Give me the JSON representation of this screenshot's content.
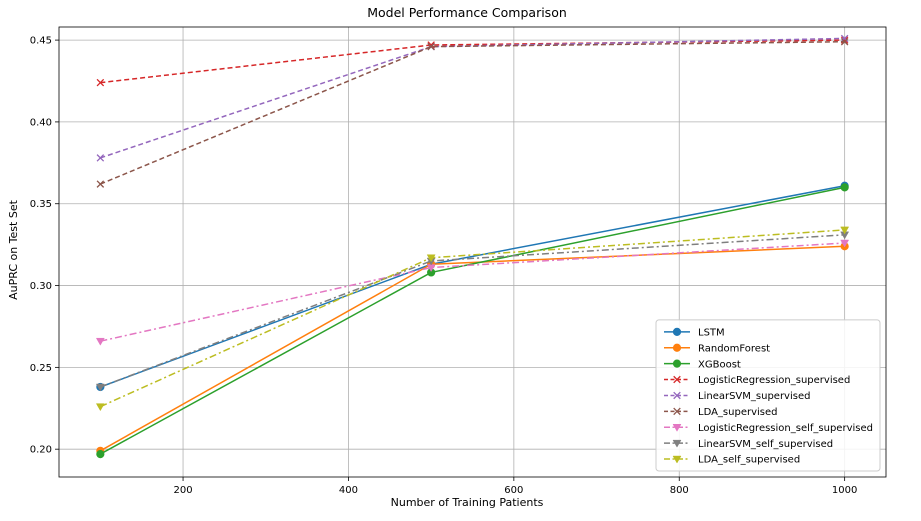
{
  "chart_data": {
    "type": "line",
    "title": "Model Performance Comparison",
    "xlabel": "Number of Training Patients",
    "ylabel": "AuPRC on Test Set",
    "xlim": [
      50,
      1050
    ],
    "ylim": [
      0.183,
      0.458
    ],
    "xticks": [
      200,
      400,
      600,
      800,
      1000
    ],
    "yticks": [
      0.2,
      0.25,
      0.3,
      0.35,
      0.4,
      0.45
    ],
    "grid": true,
    "legend_position": "lower-right",
    "x": [
      100,
      500,
      1000
    ],
    "series": [
      {
        "name": "LSTM",
        "values": [
          0.238,
          0.313,
          0.361
        ],
        "color": "#1f77b4",
        "linestyle": "solid",
        "marker": "circle"
      },
      {
        "name": "RandomForest",
        "values": [
          0.199,
          0.313,
          0.324
        ],
        "color": "#ff7f0e",
        "linestyle": "solid",
        "marker": "circle"
      },
      {
        "name": "XGBoost",
        "values": [
          0.197,
          0.308,
          0.36
        ],
        "color": "#2ca02c",
        "linestyle": "solid",
        "marker": "circle"
      },
      {
        "name": "LogisticRegression_supervised",
        "values": [
          0.424,
          0.447,
          0.45
        ],
        "color": "#d62728",
        "linestyle": "dashed",
        "marker": "x"
      },
      {
        "name": "LinearSVM_supervised",
        "values": [
          0.378,
          0.446,
          0.451
        ],
        "color": "#9467bd",
        "linestyle": "dashed",
        "marker": "x"
      },
      {
        "name": "LDA_supervised",
        "values": [
          0.362,
          0.446,
          0.449
        ],
        "color": "#8c564b",
        "linestyle": "dashed",
        "marker": "x"
      },
      {
        "name": "LogisticRegression_self_supervised",
        "values": [
          0.266,
          0.311,
          0.326
        ],
        "color": "#e377c2",
        "linestyle": "dashdot",
        "marker": "triangle-down"
      },
      {
        "name": "LinearSVM_self_supervised",
        "values": [
          0.238,
          0.315,
          0.331
        ],
        "color": "#7f7f7f",
        "linestyle": "dashdot",
        "marker": "triangle-down"
      },
      {
        "name": "LDA_self_supervised",
        "values": [
          0.226,
          0.317,
          0.334
        ],
        "color": "#bcbd22",
        "linestyle": "dashdot",
        "marker": "triangle-down"
      }
    ]
  }
}
